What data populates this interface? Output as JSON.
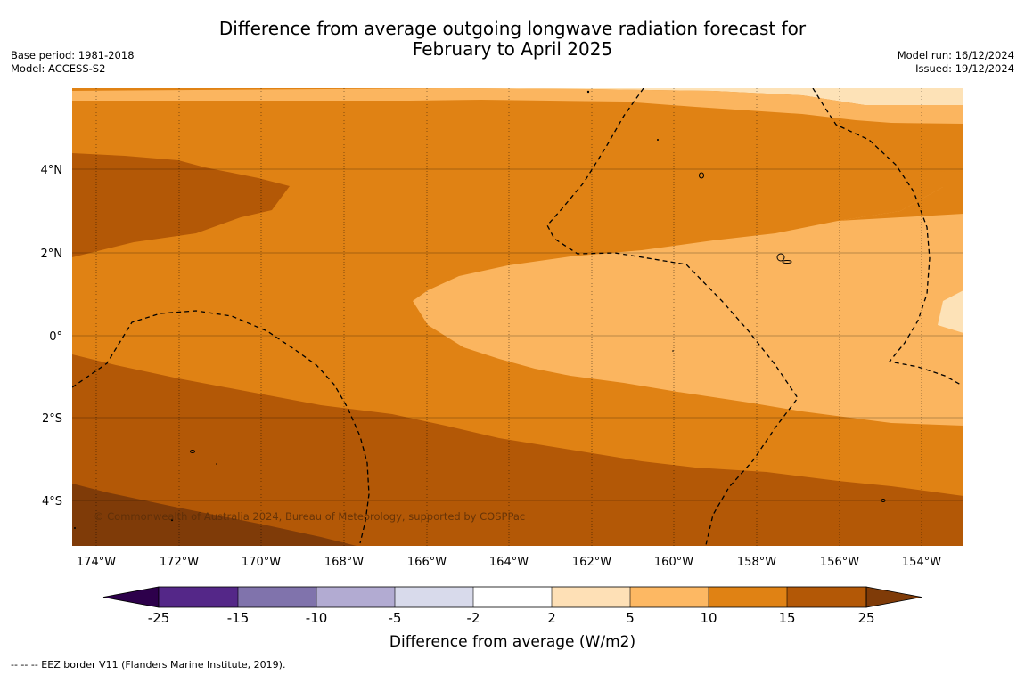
{
  "title": {
    "line1": "Difference from average outgoing longwave radiation forecast for",
    "line2": "February to April 2025"
  },
  "meta_left": {
    "base_period": "Base period: 1981-2018",
    "model": "Model: ACCESS-S2"
  },
  "meta_right": {
    "model_run": "Model run: 16/12/2024",
    "issued": "Issued: 19/12/2024"
  },
  "map": {
    "lat_ticks": [
      "4°N",
      "2°N",
      "0°",
      "2°S",
      "4°S"
    ],
    "lon_ticks": [
      "174°W",
      "172°W",
      "170°W",
      "168°W",
      "166°W",
      "164°W",
      "162°W",
      "160°W",
      "158°W",
      "156°W",
      "154°W"
    ],
    "copyright": "© Commonwealth of Australia 2024, Bureau of Meteorology, supported by COSPPac",
    "colors": {
      "band_2_5": "#fde2b7",
      "band_5_10": "#fbb55f",
      "band_10_15": "#e08214",
      "band_15_25": "#b35806",
      "band_over_25": "#7f3b08"
    }
  },
  "colorbar": {
    "label": "Difference from average (W/m2)",
    "ticks": [
      "-25",
      "-15",
      "-10",
      "-5",
      "-2",
      "2",
      "5",
      "10",
      "15",
      "25"
    ],
    "colors": {
      "under_minus25": "#2d004b",
      "minus25_minus15": "#542788",
      "minus15_minus10": "#8073ac",
      "minus10_minus5": "#b2abd2",
      "minus5_minus2": "#d8daeb",
      "minus2_2": "#ffffff",
      "2_5": "#fee0b6",
      "5_10": "#fdb863",
      "10_15": "#e08214",
      "15_25": "#b35806",
      "over_25": "#7f3b08"
    }
  },
  "footnote": "--  --  -- EEZ border V11 (Flanders Marine Institute, 2019)."
}
